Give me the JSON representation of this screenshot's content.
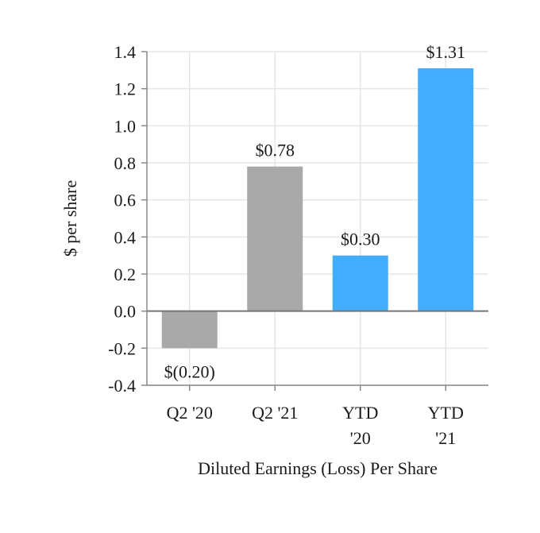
{
  "chart_data": {
    "type": "bar",
    "title": "",
    "xlabel": "Diluted Earnings (Loss) Per Share",
    "ylabel": "$ per share",
    "ylim": [
      -0.4,
      1.4
    ],
    "yticks": [
      1.4,
      1.2,
      1.0,
      0.8,
      0.6,
      0.4,
      0.2,
      0.0,
      -0.2,
      -0.4
    ],
    "ytick_labels": [
      "1.4",
      "1.2",
      "1.0",
      "0.8",
      "0.6",
      "0.4",
      "0.2",
      "0.0",
      "-0.2",
      "-0.4"
    ],
    "grid": true,
    "categories": [
      {
        "lines": [
          "Q2 '20"
        ]
      },
      {
        "lines": [
          "Q2 '21"
        ]
      },
      {
        "lines": [
          "YTD",
          "'20"
        ]
      },
      {
        "lines": [
          "YTD",
          "'21"
        ]
      }
    ],
    "values": [
      -0.2,
      0.78,
      0.3,
      1.31
    ],
    "data_labels": [
      "$(0.20)",
      "$0.78",
      "$0.30",
      "$1.31"
    ],
    "colors": [
      "#a9a9a9",
      "#a9a9a9",
      "#42adff",
      "#42adff"
    ],
    "grid_color": "#e6e6e6",
    "axis_color": "#888888",
    "zero_line_color": "#777777"
  }
}
